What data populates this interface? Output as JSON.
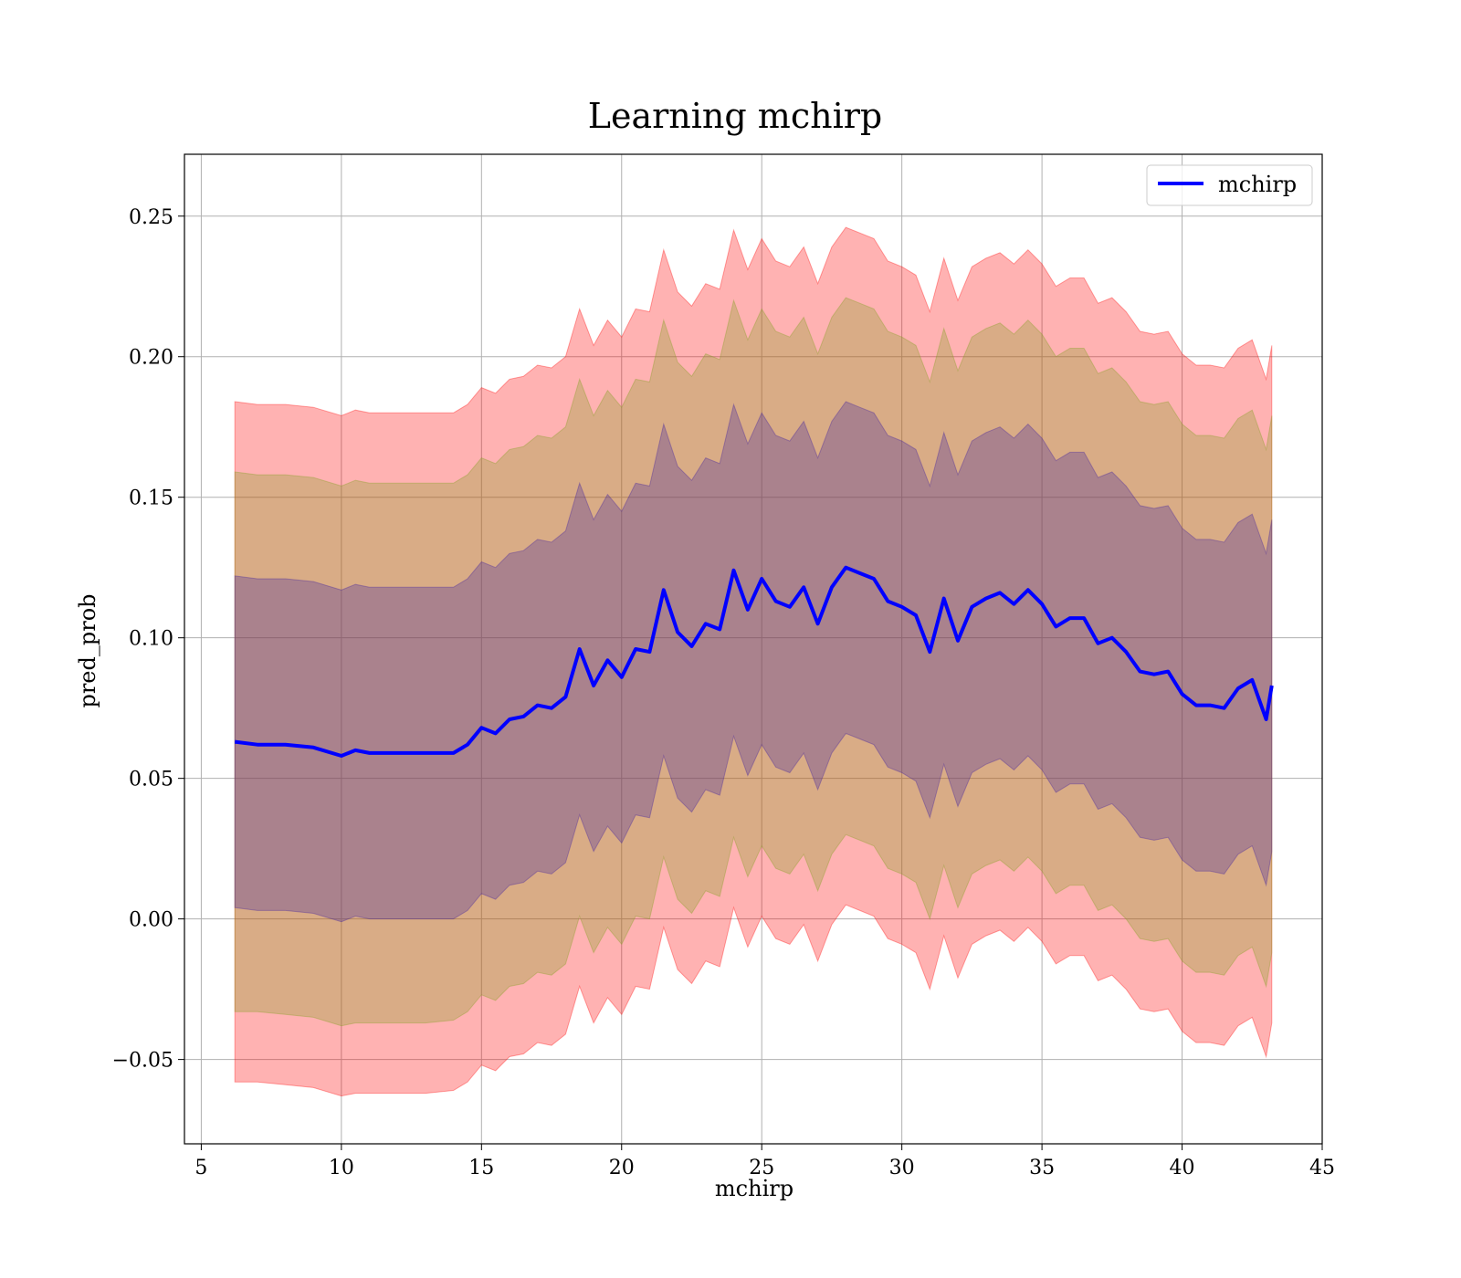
{
  "chart_data": {
    "type": "line",
    "title": "Learning mchirp",
    "xlabel": "mchirp",
    "ylabel": "pred_prob",
    "xlim": [
      4.4,
      45
    ],
    "ylim": [
      -0.08,
      0.272
    ],
    "xticks": [
      5,
      10,
      15,
      20,
      25,
      30,
      35,
      40,
      45
    ],
    "xtick_labels": [
      "5",
      "10",
      "15",
      "20",
      "25",
      "30",
      "35",
      "40",
      "45"
    ],
    "yticks": [
      -0.05,
      0.0,
      0.05,
      0.1,
      0.15,
      0.2,
      0.25
    ],
    "ytick_labels": [
      "−0.05",
      "0.00",
      "0.05",
      "0.10",
      "0.15",
      "0.20",
      "0.25"
    ],
    "grid": true,
    "legend_position": "top-right",
    "series": [
      {
        "name": "mchirp",
        "color": "#0000ff",
        "x": [
          6.2,
          7,
          8,
          9,
          10,
          10.5,
          11,
          12,
          13,
          14,
          14.5,
          15,
          15.5,
          16,
          16.5,
          17,
          17.5,
          18,
          18.5,
          19,
          19.5,
          20,
          20.5,
          21,
          21.5,
          22,
          22.5,
          23,
          23.5,
          24,
          24.5,
          25,
          25.5,
          26,
          26.5,
          27,
          27.5,
          28,
          28.5,
          29,
          29.5,
          30,
          30.5,
          31,
          31.5,
          32,
          32.5,
          33,
          33.5,
          34,
          34.5,
          35,
          35.5,
          36,
          36.5,
          37,
          37.5,
          38,
          38.5,
          39,
          39.5,
          40,
          40.5,
          41,
          41.5,
          42,
          42.5,
          43,
          43.2
        ],
        "y": [
          0.063,
          0.062,
          0.062,
          0.061,
          0.058,
          0.06,
          0.059,
          0.059,
          0.059,
          0.059,
          0.062,
          0.068,
          0.066,
          0.071,
          0.072,
          0.076,
          0.075,
          0.079,
          0.096,
          0.083,
          0.092,
          0.086,
          0.096,
          0.095,
          0.117,
          0.102,
          0.097,
          0.105,
          0.103,
          0.124,
          0.11,
          0.121,
          0.113,
          0.111,
          0.118,
          0.105,
          0.118,
          0.125,
          0.123,
          0.121,
          0.113,
          0.111,
          0.108,
          0.095,
          0.114,
          0.099,
          0.111,
          0.114,
          0.116,
          0.112,
          0.117,
          0.112,
          0.104,
          0.107,
          0.107,
          0.098,
          0.1,
          0.095,
          0.088,
          0.087,
          0.088,
          0.08,
          0.076,
          0.076,
          0.075,
          0.082,
          0.085,
          0.071,
          0.083
        ]
      }
    ],
    "bands": [
      {
        "color": "#ff0000",
        "opacity": 0.3,
        "lower": [
          -0.058,
          -0.058,
          -0.059,
          -0.06,
          -0.063,
          -0.062,
          -0.062,
          -0.062,
          -0.062,
          -0.061,
          -0.058,
          -0.052,
          -0.054,
          -0.049,
          -0.048,
          -0.044,
          -0.045,
          -0.041,
          -0.024,
          -0.037,
          -0.028,
          -0.034,
          -0.024,
          -0.025,
          -0.003,
          -0.018,
          -0.023,
          -0.015,
          -0.017,
          0.004,
          -0.01,
          0.001,
          -0.007,
          -0.009,
          -0.002,
          -0.015,
          -0.002,
          0.005,
          0.003,
          0.001,
          -0.007,
          -0.009,
          -0.012,
          -0.025,
          -0.006,
          -0.021,
          -0.009,
          -0.006,
          -0.004,
          -0.008,
          -0.003,
          -0.008,
          -0.016,
          -0.013,
          -0.013,
          -0.022,
          -0.02,
          -0.025,
          -0.032,
          -0.033,
          -0.032,
          -0.04,
          -0.044,
          -0.044,
          -0.045,
          -0.038,
          -0.035,
          -0.049,
          -0.037
        ],
        "upper": [
          0.184,
          0.183,
          0.183,
          0.182,
          0.179,
          0.181,
          0.18,
          0.18,
          0.18,
          0.18,
          0.183,
          0.189,
          0.187,
          0.192,
          0.193,
          0.197,
          0.196,
          0.2,
          0.217,
          0.204,
          0.213,
          0.207,
          0.217,
          0.216,
          0.238,
          0.223,
          0.218,
          0.226,
          0.224,
          0.245,
          0.231,
          0.242,
          0.234,
          0.232,
          0.239,
          0.226,
          0.239,
          0.246,
          0.244,
          0.242,
          0.234,
          0.232,
          0.229,
          0.216,
          0.235,
          0.22,
          0.232,
          0.235,
          0.237,
          0.233,
          0.238,
          0.233,
          0.225,
          0.228,
          0.228,
          0.219,
          0.221,
          0.216,
          0.209,
          0.208,
          0.209,
          0.201,
          0.197,
          0.197,
          0.196,
          0.203,
          0.206,
          0.192,
          0.204
        ]
      },
      {
        "color": "#80a020",
        "opacity": 0.3,
        "lower": [
          -0.033,
          -0.033,
          -0.034,
          -0.035,
          -0.038,
          -0.037,
          -0.037,
          -0.037,
          -0.037,
          -0.036,
          -0.033,
          -0.027,
          -0.029,
          -0.024,
          -0.023,
          -0.019,
          -0.02,
          -0.016,
          0.001,
          -0.012,
          -0.003,
          -0.009,
          0.001,
          0.0,
          0.022,
          0.007,
          0.002,
          0.01,
          0.008,
          0.029,
          0.015,
          0.026,
          0.018,
          0.016,
          0.023,
          0.01,
          0.023,
          0.03,
          0.028,
          0.026,
          0.018,
          0.016,
          0.013,
          0.0,
          0.019,
          0.004,
          0.016,
          0.019,
          0.021,
          0.017,
          0.022,
          0.017,
          0.009,
          0.012,
          0.012,
          0.003,
          0.005,
          0.0,
          -0.007,
          -0.008,
          -0.007,
          -0.015,
          -0.019,
          -0.019,
          -0.02,
          -0.013,
          -0.01,
          -0.024,
          -0.012
        ],
        "upper": [
          0.159,
          0.158,
          0.158,
          0.157,
          0.154,
          0.156,
          0.155,
          0.155,
          0.155,
          0.155,
          0.158,
          0.164,
          0.162,
          0.167,
          0.168,
          0.172,
          0.171,
          0.175,
          0.192,
          0.179,
          0.188,
          0.182,
          0.192,
          0.191,
          0.213,
          0.198,
          0.193,
          0.201,
          0.199,
          0.22,
          0.206,
          0.217,
          0.209,
          0.207,
          0.214,
          0.201,
          0.214,
          0.221,
          0.219,
          0.217,
          0.209,
          0.207,
          0.204,
          0.191,
          0.21,
          0.195,
          0.207,
          0.21,
          0.212,
          0.208,
          0.213,
          0.208,
          0.2,
          0.203,
          0.203,
          0.194,
          0.196,
          0.191,
          0.184,
          0.183,
          0.184,
          0.176,
          0.172,
          0.172,
          0.171,
          0.178,
          0.181,
          0.167,
          0.179
        ]
      },
      {
        "color": "#4020a0",
        "opacity": 0.3,
        "lower": [
          0.004,
          0.003,
          0.003,
          0.002,
          -0.001,
          0.001,
          0.0,
          0.0,
          0.0,
          0.0,
          0.003,
          0.009,
          0.007,
          0.012,
          0.013,
          0.017,
          0.016,
          0.02,
          0.037,
          0.024,
          0.033,
          0.027,
          0.037,
          0.036,
          0.058,
          0.043,
          0.038,
          0.046,
          0.044,
          0.065,
          0.051,
          0.062,
          0.054,
          0.052,
          0.059,
          0.046,
          0.059,
          0.066,
          0.064,
          0.062,
          0.054,
          0.052,
          0.049,
          0.036,
          0.055,
          0.04,
          0.052,
          0.055,
          0.057,
          0.053,
          0.058,
          0.053,
          0.045,
          0.048,
          0.048,
          0.039,
          0.041,
          0.036,
          0.029,
          0.028,
          0.029,
          0.021,
          0.017,
          0.017,
          0.016,
          0.023,
          0.026,
          0.012,
          0.024
        ],
        "upper": [
          0.122,
          0.121,
          0.121,
          0.12,
          0.117,
          0.119,
          0.118,
          0.118,
          0.118,
          0.118,
          0.121,
          0.127,
          0.125,
          0.13,
          0.131,
          0.135,
          0.134,
          0.138,
          0.155,
          0.142,
          0.151,
          0.145,
          0.155,
          0.154,
          0.176,
          0.161,
          0.156,
          0.164,
          0.162,
          0.183,
          0.169,
          0.18,
          0.172,
          0.17,
          0.177,
          0.164,
          0.177,
          0.184,
          0.182,
          0.18,
          0.172,
          0.17,
          0.167,
          0.154,
          0.173,
          0.158,
          0.17,
          0.173,
          0.175,
          0.171,
          0.176,
          0.171,
          0.163,
          0.166,
          0.166,
          0.157,
          0.159,
          0.154,
          0.147,
          0.146,
          0.147,
          0.139,
          0.135,
          0.135,
          0.134,
          0.141,
          0.144,
          0.13,
          0.142
        ]
      }
    ]
  }
}
